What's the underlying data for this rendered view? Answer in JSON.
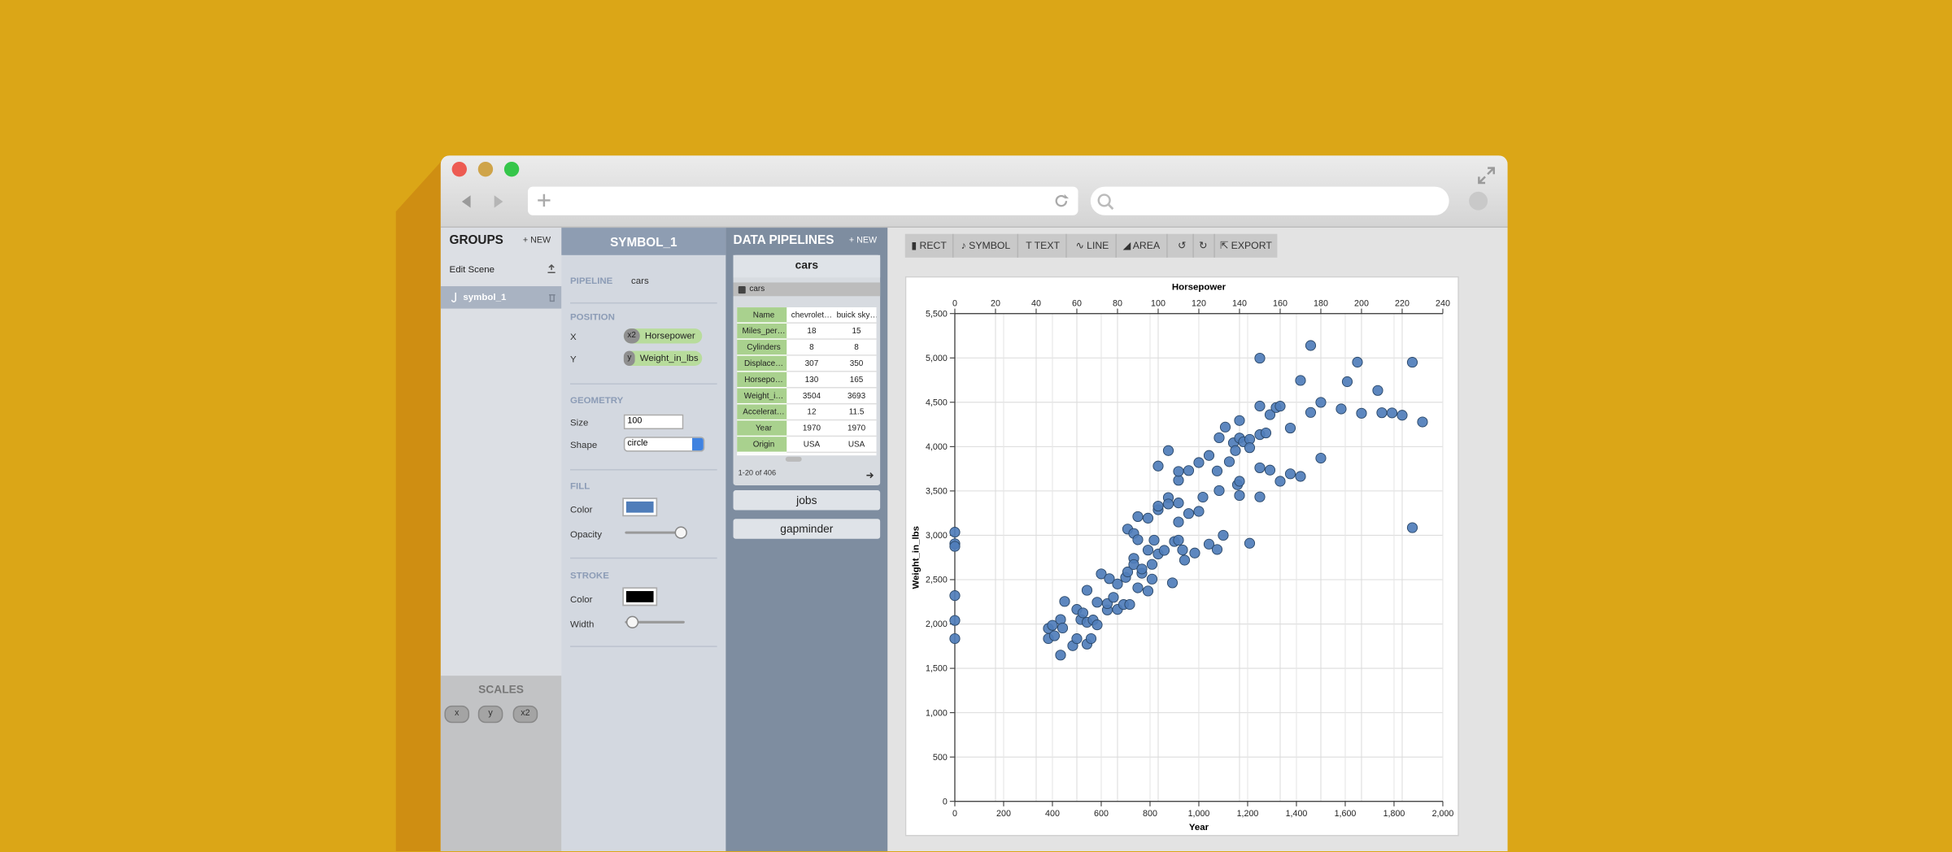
{
  "groups_panel": {
    "title": "GROUPS",
    "new_button": "+ NEW",
    "items": [
      "Edit Scene",
      "symbol_1"
    ]
  },
  "scales_panel": {
    "title": "SCALES",
    "scales": [
      "x",
      "y",
      "x2"
    ]
  },
  "symbol_panel": {
    "title": "SYMBOL_1",
    "pipeline_label": "PIPELINE",
    "pipeline": "cars",
    "position": {
      "title": "POSITION",
      "x_label": "X",
      "x_scale": "x2",
      "x_field": "Horsepower",
      "y_label": "Y",
      "y_scale": "y",
      "y_field": "Weight_in_lbs"
    },
    "geometry": {
      "title": "GEOMETRY",
      "size_label": "Size",
      "size": 100,
      "shape_label": "Shape",
      "shape": "circle"
    },
    "fill": {
      "title": "FILL",
      "color_label": "Color",
      "color": "#4f7dba",
      "opacity_label": "Opacity"
    },
    "stroke": {
      "title": "STROKE",
      "color_label": "Color",
      "color": "#000000",
      "width_label": "Width"
    }
  },
  "pipelines_panel": {
    "title": "DATA PIPELINES",
    "new_button": "+ NEW",
    "pipelines": [
      "cars",
      "jobs",
      "gapminder"
    ],
    "source": "cars",
    "table": {
      "rows": [
        [
          "Name",
          "chevrolet…",
          "buick sky…"
        ],
        [
          "Miles_per…",
          18,
          15
        ],
        [
          "Cylinders",
          8,
          8
        ],
        [
          "Displace…",
          307,
          350
        ],
        [
          "Horsepo…",
          130,
          165
        ],
        [
          "Weight_i…",
          3504,
          3693
        ],
        [
          "Accelerat…",
          12,
          11.5
        ],
        [
          "Year",
          1970,
          1970
        ],
        [
          "Origin",
          "USA",
          "USA"
        ]
      ]
    },
    "pagination": "1-20 of 406"
  },
  "toolbar": [
    "RECT",
    "SYMBOL",
    "TEXT",
    "LINE",
    "AREA",
    "EXPORT"
  ],
  "chart_data": {
    "type": "scatter",
    "x_label": "Horsepower",
    "x2_label": "Year",
    "y_label": "Weight_in_lbs",
    "xlim": [
      0,
      240
    ],
    "xticks": [
      0,
      20,
      40,
      60,
      80,
      100,
      120,
      140,
      160,
      180,
      200,
      220,
      240
    ],
    "x2lim": [
      0,
      2000
    ],
    "x2ticks": [
      0,
      200,
      400,
      600,
      800,
      {
        "value": 1000,
        "label": "1,000"
      },
      {
        "value": 1200,
        "label": "1,200"
      },
      {
        "value": 1400,
        "label": "1,400"
      },
      {
        "value": 1600,
        "label": "1,600"
      },
      {
        "value": 1800,
        "label": "1,800"
      },
      {
        "value": 2000,
        "label": "2,000"
      }
    ],
    "ylim": [
      0,
      5500
    ],
    "yticks": [
      0,
      500,
      {
        "value": 1000,
        "label": "1,000"
      },
      {
        "value": 1500,
        "label": "1,500"
      },
      {
        "value": 2000,
        "label": "2,000"
      },
      {
        "value": 2500,
        "label": "2,500"
      },
      {
        "value": 3000,
        "label": "3,000"
      },
      {
        "value": 3500,
        "label": "3,500"
      },
      {
        "value": 4000,
        "label": "4,000"
      },
      {
        "value": 4500,
        "label": "4,500"
      },
      {
        "value": 5000,
        "label": "5,000"
      },
      {
        "value": 5500,
        "label": "5,500"
      }
    ],
    "grid": true,
    "series": [
      {
        "color": "#4f7dba",
        "x": [
          0,
          0,
          0,
          0,
          0,
          0,
          46,
          46,
          48,
          49,
          52,
          52,
          53,
          54,
          58,
          60,
          60,
          62,
          63,
          65,
          65,
          65,
          67,
          68,
          70,
          70,
          72,
          75,
          75,
          76,
          78,
          80,
          80,
          83,
          84,
          85,
          85,
          86,
          88,
          88,
          88,
          90,
          90,
          90,
          92,
          92,
          95,
          95,
          95,
          97,
          97,
          98,
          100,
          100,
          100,
          100,
          103,
          105,
          105,
          105,
          107,
          108,
          110,
          110,
          110,
          110,
          110,
          112,
          113,
          115,
          115,
          118,
          120,
          120,
          122,
          125,
          125,
          129,
          129,
          130,
          130,
          132,
          133,
          135,
          137,
          138,
          139,
          140,
          140,
          140,
          140,
          142,
          145,
          145,
          145,
          150,
          150,
          150,
          150,
          150,
          153,
          155,
          155,
          158,
          160,
          160,
          165,
          165,
          170,
          170,
          175,
          180,
          180,
          190,
          193,
          198,
          200,
          208,
          210,
          215,
          220,
          225,
          225,
          230,
          175
        ],
        "values": [
          3035,
          2905,
          2875,
          2320,
          2040,
          1835,
          1835,
          1950,
          1985,
          1867,
          1649,
          2050,
          1955,
          2254,
          1755,
          1834,
          2164,
          2050,
          2125,
          2380,
          1773,
          2019,
          1835,
          2045,
          2245,
          1990,
          2565,
          2158,
          2230,
          2511,
          2300,
          2164,
          2451,
          2219,
          2525,
          2587,
          3070,
          2220,
          2740,
          3021,
          2670,
          3211,
          2950,
          2408,
          2572,
          2620,
          2372,
          3193,
          2833,
          2506,
          2672,
          2945,
          3288,
          2789,
          3329,
          3781,
          2830,
          3425,
          3353,
          3955,
          2464,
          2930,
          3620,
          3720,
          3365,
          2945,
          3150,
          2835,
          2720,
          3245,
          3730,
          2800,
          3820,
          3270,
          3430,
          3900,
          2900,
          3725,
          2840,
          3504,
          4100,
          3000,
          4220,
          3830,
          4042,
          3955,
          3570,
          3449,
          4096,
          4294,
          3609,
          4054,
          4082,
          3988,
          2910,
          3761,
          4997,
          4135,
          3433,
          4457,
          4154,
          4360,
          3735,
          4440,
          4456,
          3609,
          4209,
          3693,
          4746,
          3664,
          4385,
          4499,
          3870,
          4425,
          4732,
          4952,
          4376,
          4633,
          4382,
          4380,
          4354,
          4951,
          3086,
          4278,
          5140
        ]
      }
    ]
  }
}
